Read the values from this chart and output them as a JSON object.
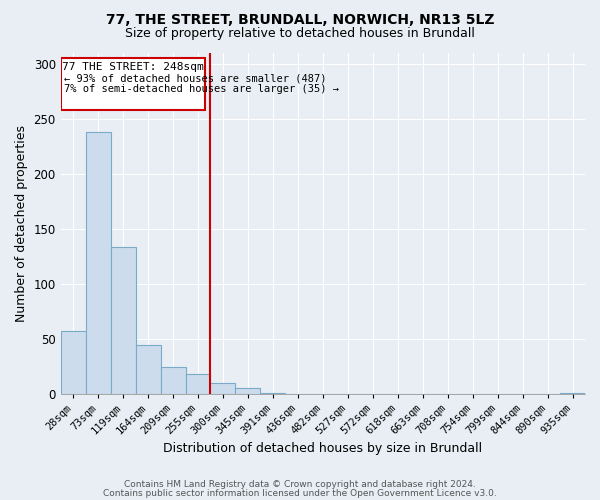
{
  "title": "77, THE STREET, BRUNDALL, NORWICH, NR13 5LZ",
  "subtitle": "Size of property relative to detached houses in Brundall",
  "xlabel": "Distribution of detached houses by size in Brundall",
  "ylabel": "Number of detached properties",
  "bar_labels": [
    "28sqm",
    "73sqm",
    "119sqm",
    "164sqm",
    "209sqm",
    "255sqm",
    "300sqm",
    "345sqm",
    "391sqm",
    "436sqm",
    "482sqm",
    "527sqm",
    "572sqm",
    "618sqm",
    "663sqm",
    "708sqm",
    "754sqm",
    "799sqm",
    "844sqm",
    "890sqm",
    "935sqm"
  ],
  "bar_values": [
    57,
    238,
    133,
    44,
    24,
    18,
    10,
    5,
    1,
    0,
    0,
    0,
    0,
    0,
    0,
    0,
    0,
    0,
    0,
    0,
    1
  ],
  "bar_color": "#ccdcec",
  "bar_edge_color": "#7aaac8",
  "vline_color": "#cc0000",
  "annotation_title": "77 THE STREET: 248sqm",
  "annotation_line1": "← 93% of detached houses are smaller (487)",
  "annotation_line2": "7% of semi-detached houses are larger (35) →",
  "annotation_box_color": "#cc0000",
  "ylim": [
    0,
    310
  ],
  "yticks": [
    0,
    50,
    100,
    150,
    200,
    250,
    300
  ],
  "footer1": "Contains HM Land Registry data © Crown copyright and database right 2024.",
  "footer2": "Contains public sector information licensed under the Open Government Licence v3.0.",
  "bg_color": "#e8eef4",
  "plot_bg_color": "#e8eef4",
  "grid_color": "#ffffff"
}
